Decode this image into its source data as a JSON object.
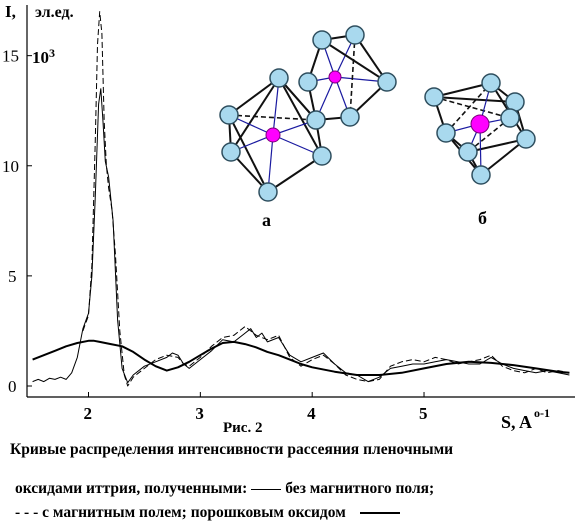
{
  "chart_data": {
    "type": "line",
    "x_axis_label": "S, A",
    "x_axis_exponent": "o-1",
    "y_axis_label": "I,",
    "y_axis_unit": "эл.ед.",
    "y_axis_multiplier": "10",
    "y_axis_multiplier_exp": "3",
    "x_ticks": [
      "2",
      "3",
      "4",
      "5"
    ],
    "y_ticks": [
      "0",
      "5",
      "10",
      "15"
    ],
    "xlim": [
      1.45,
      6.35
    ],
    "ylim": [
      -0.5,
      17.3
    ],
    "figure_label": "Рис. 2",
    "series": [
      {
        "name": "без магнитного поля",
        "style": "thin-solid",
        "x": [
          1.5,
          1.55,
          1.6,
          1.65,
          1.7,
          1.75,
          1.8,
          1.85,
          1.9,
          1.95,
          2.0,
          2.03,
          2.06,
          2.09,
          2.11,
          2.13,
          2.15,
          2.18,
          2.22,
          2.26,
          2.3,
          2.35,
          2.4,
          2.5,
          2.6,
          2.7,
          2.75,
          2.8,
          2.85,
          2.9,
          3.0,
          3.1,
          3.2,
          3.3,
          3.4,
          3.45,
          3.5,
          3.55,
          3.6,
          3.7,
          3.8,
          3.9,
          4.0,
          4.1,
          4.2,
          4.3,
          4.4,
          4.5,
          4.6,
          4.7,
          4.8,
          4.9,
          5.0,
          5.1,
          5.2,
          5.3,
          5.4,
          5.5,
          5.6,
          5.7,
          5.8,
          5.9,
          6.0,
          6.1,
          6.2,
          6.3
        ],
        "y": [
          0.2,
          0.3,
          0.2,
          0.35,
          0.3,
          0.4,
          0.3,
          0.6,
          1.3,
          2.6,
          3.3,
          5.0,
          8.5,
          12.8,
          13.5,
          12.0,
          10.2,
          9.5,
          7.5,
          3.0,
          0.8,
          0.15,
          0.5,
          0.9,
          1.1,
          1.3,
          1.5,
          1.4,
          1.0,
          0.8,
          1.2,
          1.6,
          2.1,
          2.0,
          2.4,
          2.6,
          2.2,
          2.4,
          2.0,
          2.2,
          1.4,
          1.1,
          1.3,
          1.5,
          1.0,
          0.6,
          0.5,
          0.2,
          0.4,
          0.8,
          0.9,
          1.0,
          1.0,
          1.1,
          1.2,
          1.1,
          1.0,
          1.0,
          1.3,
          1.0,
          0.8,
          0.7,
          0.6,
          0.7,
          0.6,
          0.5
        ]
      },
      {
        "name": "с магнитным полем",
        "style": "dashed",
        "x": [
          1.95,
          2.0,
          2.03,
          2.06,
          2.08,
          2.1,
          2.12,
          2.14,
          2.16,
          2.18,
          2.21,
          2.24,
          2.28,
          2.32,
          2.35,
          2.4,
          2.5,
          2.6,
          2.7,
          2.8,
          2.85,
          2.9,
          3.0,
          3.1,
          3.2,
          3.3,
          3.4,
          3.45,
          3.5,
          3.6,
          3.7,
          3.8,
          3.9,
          4.0,
          4.1,
          4.2,
          4.3,
          4.4,
          4.5,
          4.6,
          4.7,
          4.8,
          4.9,
          5.0,
          5.1,
          5.2,
          5.3,
          5.4,
          5.5,
          5.6,
          5.7,
          5.8,
          5.9,
          6.0,
          6.1,
          6.2,
          6.3
        ],
        "y": [
          2.5,
          3.2,
          5.5,
          11.0,
          15.5,
          17.0,
          16.0,
          12.0,
          10.0,
          9.0,
          8.0,
          6.0,
          2.5,
          0.5,
          0.0,
          0.4,
          0.8,
          1.2,
          1.4,
          1.3,
          1.0,
          0.9,
          1.3,
          1.8,
          2.2,
          2.3,
          2.7,
          2.5,
          2.3,
          2.1,
          2.3,
          1.3,
          0.9,
          1.2,
          1.4,
          1.0,
          0.5,
          0.3,
          0.2,
          0.3,
          0.9,
          1.1,
          1.2,
          1.1,
          1.3,
          1.2,
          1.0,
          1.1,
          1.2,
          1.4,
          0.9,
          0.7,
          0.6,
          0.8,
          0.6,
          0.7,
          0.6
        ]
      },
      {
        "name": "порошковым оксидом",
        "style": "thick-solid",
        "x": [
          1.5,
          1.6,
          1.7,
          1.8,
          1.9,
          2.0,
          2.05,
          2.1,
          2.2,
          2.3,
          2.4,
          2.5,
          2.6,
          2.7,
          2.8,
          2.9,
          3.0,
          3.1,
          3.2,
          3.3,
          3.4,
          3.5,
          3.6,
          3.7,
          3.8,
          3.9,
          4.0,
          4.2,
          4.4,
          4.6,
          4.8,
          5.0,
          5.2,
          5.4,
          5.6,
          5.8,
          6.0,
          6.2,
          6.3
        ],
        "y": [
          1.2,
          1.4,
          1.6,
          1.8,
          1.95,
          2.05,
          2.05,
          2.0,
          1.9,
          1.8,
          1.55,
          1.2,
          0.9,
          0.7,
          0.85,
          1.1,
          1.4,
          1.7,
          1.95,
          2.0,
          1.9,
          1.75,
          1.55,
          1.4,
          1.2,
          1.0,
          0.85,
          0.65,
          0.5,
          0.5,
          0.6,
          0.8,
          1.0,
          1.1,
          1.05,
          0.95,
          0.8,
          0.65,
          0.6
        ]
      }
    ],
    "insets": [
      {
        "label": "а"
      },
      {
        "label": "б"
      }
    ]
  },
  "caption": {
    "line1": "Кривые распределения интенсивности рассеяния пленочными",
    "line2_a": "оксидами иттрия, полученными:",
    "line2_b": "без магнитного поля;",
    "line3_a": "- - - с магнитным полем; порошковым   оксидом"
  },
  "colors": {
    "atom_fill": "#a9d9ee",
    "atom_stroke": "#2f4f5f",
    "center_atom": "#ff00ff",
    "inner_bond": "#1a1aa0",
    "axis": "#000000"
  }
}
